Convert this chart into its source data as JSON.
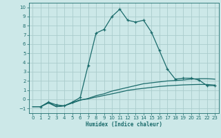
{
  "xlabel": "Humidex (Indice chaleur)",
  "ylabel": "",
  "xlim": [
    -0.5,
    23.5
  ],
  "ylim": [
    -1.5,
    10.5
  ],
  "xticks": [
    0,
    1,
    2,
    3,
    4,
    5,
    6,
    7,
    8,
    9,
    10,
    11,
    12,
    13,
    14,
    15,
    16,
    17,
    18,
    19,
    20,
    21,
    22,
    23
  ],
  "yticks": [
    -1,
    0,
    1,
    2,
    3,
    4,
    5,
    6,
    7,
    8,
    9,
    10
  ],
  "background_color": "#cce8e8",
  "grid_color": "#aacccc",
  "line_color": "#1a6b6b",
  "curve1_x": [
    1,
    2,
    3,
    4,
    5,
    6,
    7,
    8,
    9,
    10,
    11,
    12,
    13,
    14,
    15,
    16,
    17,
    18,
    19,
    20,
    21,
    22,
    23
  ],
  "curve1_y": [
    -0.8,
    -0.3,
    -0.6,
    -0.7,
    -0.3,
    0.2,
    3.7,
    7.2,
    7.6,
    9.0,
    9.8,
    8.6,
    8.4,
    8.6,
    7.3,
    5.3,
    3.3,
    2.2,
    2.3,
    2.3,
    2.1,
    1.5,
    1.5
  ],
  "curve2_x": [
    0,
    1,
    2,
    3,
    4,
    5,
    6,
    7,
    8,
    9,
    10,
    11,
    12,
    13,
    14,
    15,
    16,
    17,
    18,
    19,
    20,
    21,
    22,
    23
  ],
  "curve2_y": [
    -0.8,
    -0.8,
    -0.4,
    -0.8,
    -0.7,
    -0.4,
    -0.1,
    0.1,
    0.4,
    0.6,
    0.9,
    1.1,
    1.3,
    1.5,
    1.7,
    1.8,
    1.9,
    2.0,
    2.05,
    2.1,
    2.2,
    2.25,
    2.25,
    2.2
  ],
  "curve3_x": [
    0,
    1,
    2,
    3,
    4,
    5,
    6,
    7,
    8,
    9,
    10,
    11,
    12,
    13,
    14,
    15,
    16,
    17,
    18,
    19,
    20,
    21,
    22,
    23
  ],
  "curve3_y": [
    -0.8,
    -0.8,
    -0.3,
    -0.8,
    -0.7,
    -0.35,
    -0.05,
    0.05,
    0.25,
    0.42,
    0.6,
    0.78,
    0.98,
    1.1,
    1.2,
    1.3,
    1.4,
    1.47,
    1.52,
    1.57,
    1.6,
    1.62,
    1.62,
    1.55
  ]
}
